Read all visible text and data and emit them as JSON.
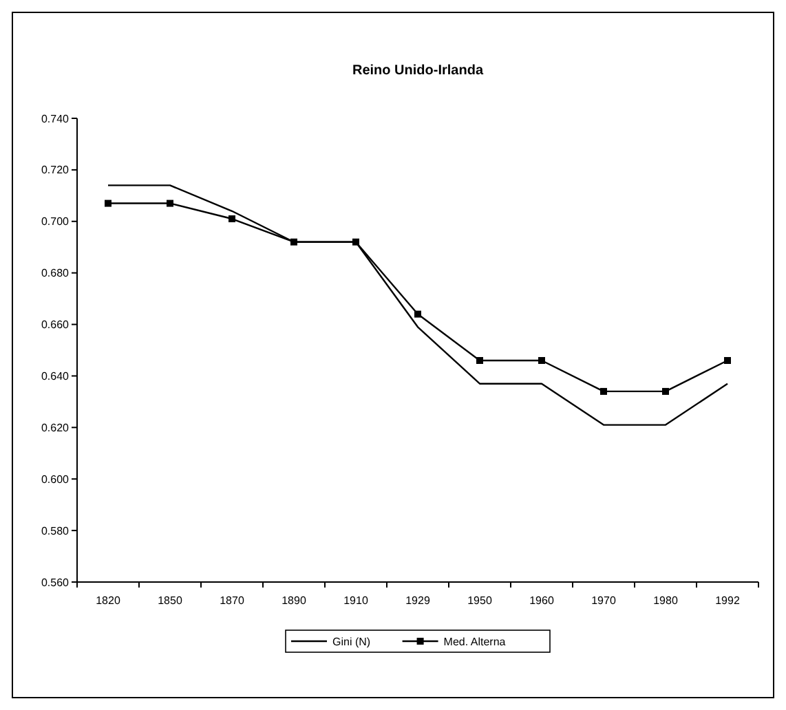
{
  "chart_data": {
    "type": "line",
    "title": "Reino Unido-Irlanda",
    "categories": [
      "1820",
      "1850",
      "1870",
      "1890",
      "1910",
      "1929",
      "1950",
      "1960",
      "1970",
      "1980",
      "1992"
    ],
    "series": [
      {
        "name": "Gini (N)",
        "color": "#000000",
        "marker": "none",
        "values": [
          0.714,
          0.714,
          0.704,
          0.692,
          0.692,
          0.659,
          0.637,
          0.637,
          0.621,
          0.621,
          0.637
        ]
      },
      {
        "name": "Med. Alterna",
        "color": "#000000",
        "marker": "square",
        "values": [
          0.707,
          0.707,
          0.701,
          0.692,
          0.692,
          0.664,
          0.646,
          0.646,
          0.634,
          0.634,
          0.646
        ]
      }
    ],
    "ylim": [
      0.56,
      0.74
    ],
    "yticks": [
      {
        "value": 0.56,
        "label": "0.560"
      },
      {
        "value": 0.58,
        "label": "0.580"
      },
      {
        "value": 0.6,
        "label": "0.600"
      },
      {
        "value": 0.62,
        "label": "0.620"
      },
      {
        "value": 0.64,
        "label": "0.640"
      },
      {
        "value": 0.66,
        "label": "0.660"
      },
      {
        "value": 0.68,
        "label": "0.680"
      },
      {
        "value": 0.7,
        "label": "0.700"
      },
      {
        "value": 0.72,
        "label": "0.720"
      },
      {
        "value": 0.74,
        "label": "0.740"
      }
    ],
    "grid": false,
    "legend": "bottom",
    "line_style": "solid"
  }
}
